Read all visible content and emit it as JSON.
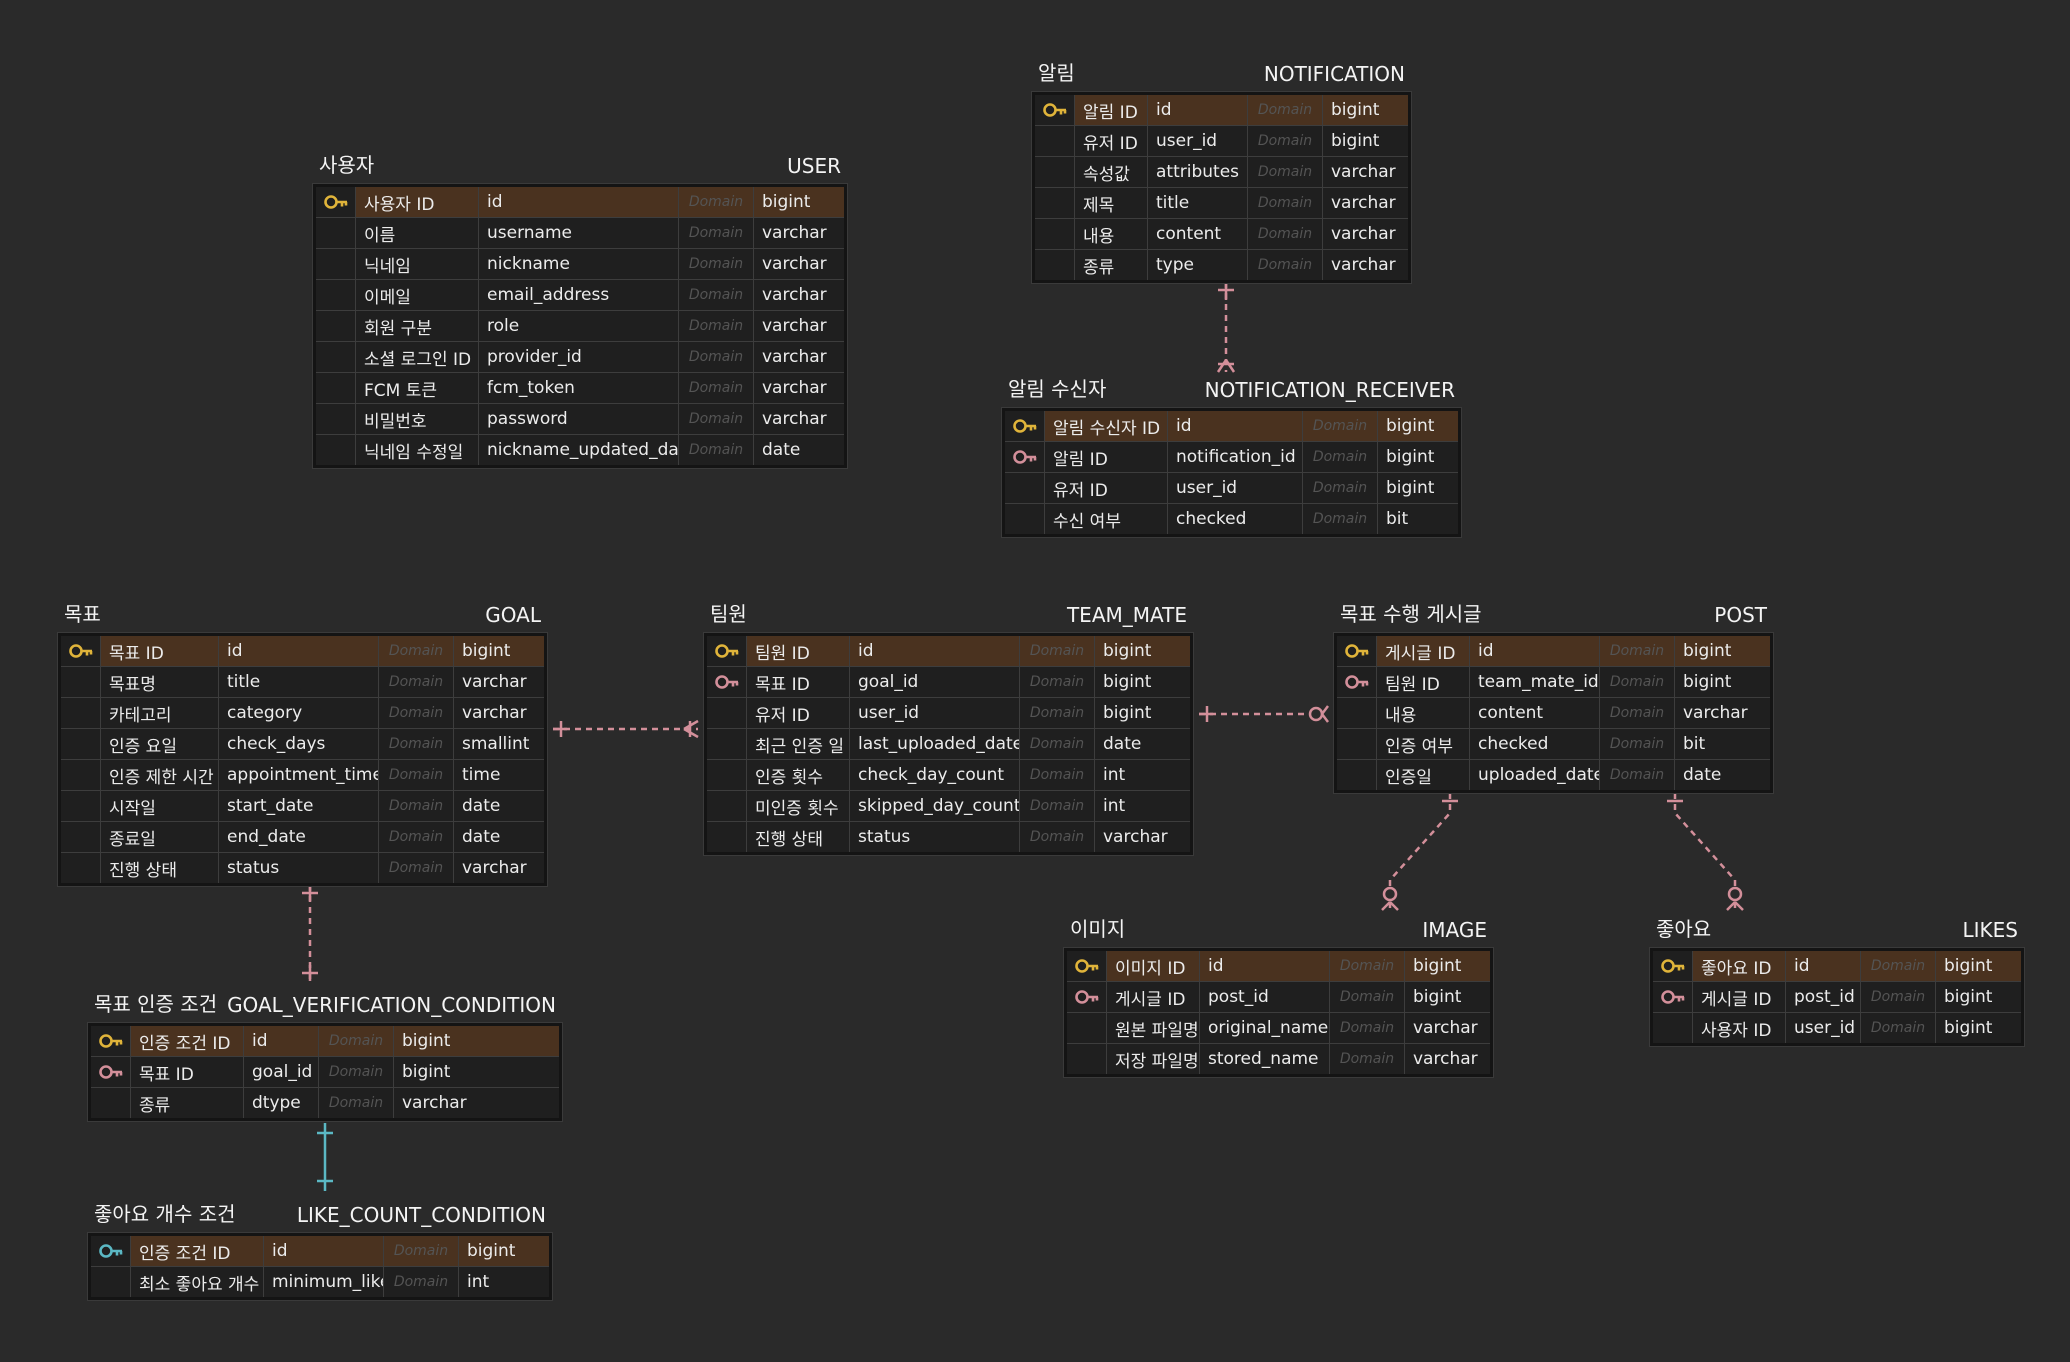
{
  "colors": {
    "background": "#2a2a2a",
    "pk_row": "#4a321f",
    "pk_key": "#e0b43a",
    "fk_key": "#d38f9a",
    "link": "#d38f9a",
    "inherit_link": "#5bb8c4",
    "inherit_key": "#5bb8c4"
  },
  "entities": {
    "notification": {
      "name_kr": "알림",
      "name_en": "NOTIFICATION",
      "columns": [
        {
          "key": "pk",
          "logical": "알림 ID",
          "physical": "id",
          "domain": "Domain",
          "type": "bigint"
        },
        {
          "key": "",
          "logical": "유저 ID",
          "physical": "user_id",
          "domain": "Domain",
          "type": "bigint"
        },
        {
          "key": "",
          "logical": "속성값",
          "physical": "attributes",
          "domain": "Domain",
          "type": "varchar"
        },
        {
          "key": "",
          "logical": "제목",
          "physical": "title",
          "domain": "Domain",
          "type": "varchar"
        },
        {
          "key": "",
          "logical": "내용",
          "physical": "content",
          "domain": "Domain",
          "type": "varchar"
        },
        {
          "key": "",
          "logical": "종류",
          "physical": "type",
          "domain": "Domain",
          "type": "varchar"
        }
      ]
    },
    "user": {
      "name_kr": "사용자",
      "name_en": "USER",
      "columns": [
        {
          "key": "pk",
          "logical": "사용자 ID",
          "physical": "id",
          "domain": "Domain",
          "type": "bigint"
        },
        {
          "key": "",
          "logical": "이름",
          "physical": "username",
          "domain": "Domain",
          "type": "varchar"
        },
        {
          "key": "",
          "logical": "닉네임",
          "physical": "nickname",
          "domain": "Domain",
          "type": "varchar"
        },
        {
          "key": "",
          "logical": "이메일",
          "physical": "email_address",
          "domain": "Domain",
          "type": "varchar"
        },
        {
          "key": "",
          "logical": "회원 구분",
          "physical": "role",
          "domain": "Domain",
          "type": "varchar"
        },
        {
          "key": "",
          "logical": "소셜 로그인 ID",
          "physical": "provider_id",
          "domain": "Domain",
          "type": "varchar"
        },
        {
          "key": "",
          "logical": "FCM 토큰",
          "physical": "fcm_token",
          "domain": "Domain",
          "type": "varchar"
        },
        {
          "key": "",
          "logical": "비밀번호",
          "physical": "password",
          "domain": "Domain",
          "type": "varchar"
        },
        {
          "key": "",
          "logical": "닉네임 수정일",
          "physical": "nickname_updated_date",
          "domain": "Domain",
          "type": "date"
        }
      ]
    },
    "notification_receiver": {
      "name_kr": "알림 수신자",
      "name_en": "NOTIFICATION_RECEIVER",
      "columns": [
        {
          "key": "pk",
          "logical": "알림 수신자 ID",
          "physical": "id",
          "domain": "Domain",
          "type": "bigint"
        },
        {
          "key": "fk",
          "logical": "알림 ID",
          "physical": "notification_id",
          "domain": "Domain",
          "type": "bigint"
        },
        {
          "key": "",
          "logical": "유저 ID",
          "physical": "user_id",
          "domain": "Domain",
          "type": "bigint"
        },
        {
          "key": "",
          "logical": "수신 여부",
          "physical": "checked",
          "domain": "Domain",
          "type": "bit"
        }
      ]
    },
    "goal": {
      "name_kr": "목표",
      "name_en": "GOAL",
      "columns": [
        {
          "key": "pk",
          "logical": "목표 ID",
          "physical": "id",
          "domain": "Domain",
          "type": "bigint"
        },
        {
          "key": "",
          "logical": "목표명",
          "physical": "title",
          "domain": "Domain",
          "type": "varchar"
        },
        {
          "key": "",
          "logical": "카테고리",
          "physical": "category",
          "domain": "Domain",
          "type": "varchar"
        },
        {
          "key": "",
          "logical": "인증 요일",
          "physical": "check_days",
          "domain": "Domain",
          "type": "smallint"
        },
        {
          "key": "",
          "logical": "인증 제한 시간",
          "physical": "appointment_time",
          "domain": "Domain",
          "type": "time"
        },
        {
          "key": "",
          "logical": "시작일",
          "physical": "start_date",
          "domain": "Domain",
          "type": "date"
        },
        {
          "key": "",
          "logical": "종료일",
          "physical": "end_date",
          "domain": "Domain",
          "type": "date"
        },
        {
          "key": "",
          "logical": "진행 상태",
          "physical": "status",
          "domain": "Domain",
          "type": "varchar"
        }
      ]
    },
    "team_mate": {
      "name_kr": "팀원",
      "name_en": "TEAM_MATE",
      "columns": [
        {
          "key": "pk",
          "logical": "팀원 ID",
          "physical": "id",
          "domain": "Domain",
          "type": "bigint"
        },
        {
          "key": "fk",
          "logical": "목표 ID",
          "physical": "goal_id",
          "domain": "Domain",
          "type": "bigint"
        },
        {
          "key": "",
          "logical": "유저 ID",
          "physical": "user_id",
          "domain": "Domain",
          "type": "bigint"
        },
        {
          "key": "",
          "logical": "최근 인증 일",
          "physical": "last_uploaded_date",
          "domain": "Domain",
          "type": "date"
        },
        {
          "key": "",
          "logical": "인증 횟수",
          "physical": "check_day_count",
          "domain": "Domain",
          "type": "int"
        },
        {
          "key": "",
          "logical": "미인증 횟수",
          "physical": "skipped_day_count",
          "domain": "Domain",
          "type": "int"
        },
        {
          "key": "",
          "logical": "진행 상태",
          "physical": "status",
          "domain": "Domain",
          "type": "varchar"
        }
      ]
    },
    "post": {
      "name_kr": "목표 수행 게시글",
      "name_en": "POST",
      "columns": [
        {
          "key": "pk",
          "logical": "게시글 ID",
          "physical": "id",
          "domain": "Domain",
          "type": "bigint"
        },
        {
          "key": "fk",
          "logical": "팀원 ID",
          "physical": "team_mate_id",
          "domain": "Domain",
          "type": "bigint"
        },
        {
          "key": "",
          "logical": "내용",
          "physical": "content",
          "domain": "Domain",
          "type": "varchar"
        },
        {
          "key": "",
          "logical": "인증 여부",
          "physical": "checked",
          "domain": "Domain",
          "type": "bit"
        },
        {
          "key": "",
          "logical": "인증일",
          "physical": "uploaded_date",
          "domain": "Domain",
          "type": "date"
        }
      ]
    },
    "image": {
      "name_kr": "이미지",
      "name_en": "IMAGE",
      "columns": [
        {
          "key": "pk",
          "logical": "이미지 ID",
          "physical": "id",
          "domain": "Domain",
          "type": "bigint"
        },
        {
          "key": "fk",
          "logical": "게시글 ID",
          "physical": "post_id",
          "domain": "Domain",
          "type": "bigint"
        },
        {
          "key": "",
          "logical": "원본 파일명",
          "physical": "original_name",
          "domain": "Domain",
          "type": "varchar"
        },
        {
          "key": "",
          "logical": "저장 파일명",
          "physical": "stored_name",
          "domain": "Domain",
          "type": "varchar"
        }
      ]
    },
    "likes": {
      "name_kr": "좋아요",
      "name_en": "LIKES",
      "columns": [
        {
          "key": "pk",
          "logical": "좋아요 ID",
          "physical": "id",
          "domain": "Domain",
          "type": "bigint"
        },
        {
          "key": "fk",
          "logical": "게시글 ID",
          "physical": "post_id",
          "domain": "Domain",
          "type": "bigint"
        },
        {
          "key": "",
          "logical": "사용자 ID",
          "physical": "user_id",
          "domain": "Domain",
          "type": "bigint"
        }
      ]
    },
    "goal_verification_condition": {
      "name_kr": "목표 인증 조건",
      "name_en": "GOAL_VERIFICATION_CONDITION",
      "columns": [
        {
          "key": "pk",
          "logical": "인증 조건 ID",
          "physical": "id",
          "domain": "Domain",
          "type": "bigint"
        },
        {
          "key": "fk",
          "logical": "목표 ID",
          "physical": "goal_id",
          "domain": "Domain",
          "type": "bigint"
        },
        {
          "key": "",
          "logical": "종류",
          "physical": "dtype",
          "domain": "Domain",
          "type": "varchar"
        }
      ]
    },
    "like_count_condition": {
      "name_kr": "좋아요 개수 조건",
      "name_en": "LIKE_COUNT_CONDITION",
      "columns": [
        {
          "key": "pk-inherit",
          "logical": "인증 조건 ID",
          "physical": "id",
          "domain": "Domain",
          "type": "bigint"
        },
        {
          "key": "",
          "logical": "최소 좋아요 개수",
          "physical": "minimum_like",
          "domain": "Domain",
          "type": "int"
        }
      ]
    }
  },
  "relationships": [
    {
      "from": "notification",
      "to": "notification_receiver",
      "from_end": "one",
      "to_end": "many"
    },
    {
      "from": "goal",
      "to": "team_mate",
      "from_end": "one",
      "to_end": "many"
    },
    {
      "from": "team_mate",
      "to": "post",
      "from_end": "one",
      "to_end": "zero-or-many"
    },
    {
      "from": "post",
      "to": "image",
      "from_end": "one",
      "to_end": "zero-or-many"
    },
    {
      "from": "post",
      "to": "likes",
      "from_end": "one",
      "to_end": "zero-or-many"
    },
    {
      "from": "goal",
      "to": "goal_verification_condition",
      "from_end": "one",
      "to_end": "one"
    },
    {
      "from": "goal_verification_condition",
      "to": "like_count_condition",
      "from_end": "one",
      "to_end": "one",
      "kind": "inheritance"
    }
  ]
}
